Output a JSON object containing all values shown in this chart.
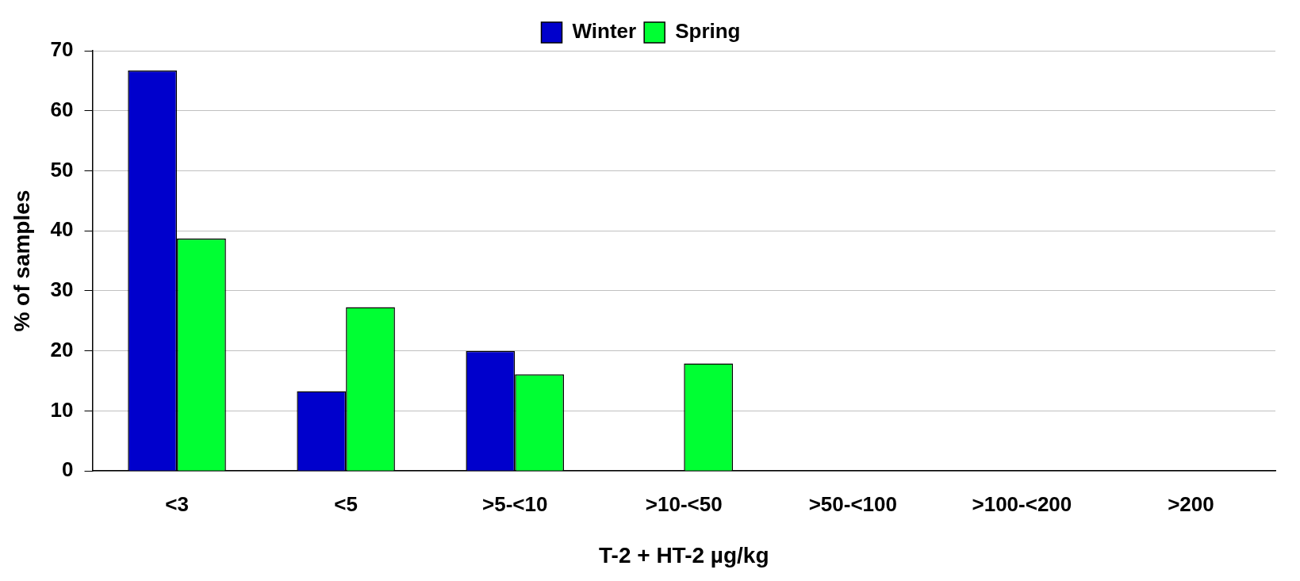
{
  "chart_data": {
    "type": "bar",
    "xlabel": "T-2 + HT-2 µg/kg",
    "ylabel": "% of samples",
    "categories": [
      "<3",
      "<5",
      ">5-<10",
      ">10-<50",
      ">50-<100",
      ">100-<200",
      ">200"
    ],
    "series": [
      {
        "name": "Winter",
        "color": "#0000cc",
        "values": [
          66.7,
          13.3,
          20.0,
          0,
          0,
          0,
          0
        ]
      },
      {
        "name": "Spring",
        "color": "#00ff33",
        "values": [
          38.7,
          27.3,
          16.1,
          17.9,
          0,
          0,
          0
        ]
      }
    ],
    "ylim": [
      0,
      70
    ],
    "yticks": [
      0,
      10,
      20,
      30,
      40,
      50,
      60,
      70
    ],
    "grid": "y",
    "legend": "top"
  }
}
